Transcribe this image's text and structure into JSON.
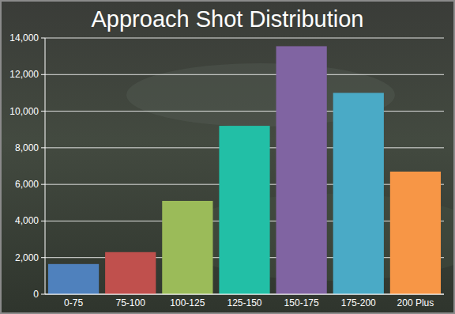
{
  "chart_data": {
    "type": "bar",
    "title": "Approach Shot Distribution",
    "categories": [
      "0-75",
      "75-100",
      "100-125",
      "125-150",
      "150-175",
      "175-200",
      "200 Plus"
    ],
    "values": [
      1650,
      2300,
      5100,
      9200,
      13550,
      11000,
      6700
    ],
    "colors": [
      "#4f81bd",
      "#c0504d",
      "#9bbb59",
      "#22bfa6",
      "#8064a2",
      "#4aaac6",
      "#f79646"
    ],
    "ylim": [
      0,
      14000
    ],
    "yticks": [
      0,
      {
        "value": 2000,
        "label": "2,000"
      },
      {
        "value": 4000,
        "label": "4,000"
      },
      {
        "value": 6000,
        "label": "6,000"
      },
      {
        "value": 8000,
        "label": "8,000"
      },
      {
        "value": 10000,
        "label": "10,000"
      },
      {
        "value": 12000,
        "label": "12,000"
      },
      {
        "value": 14000,
        "label": "14,000"
      }
    ],
    "grid": true
  }
}
